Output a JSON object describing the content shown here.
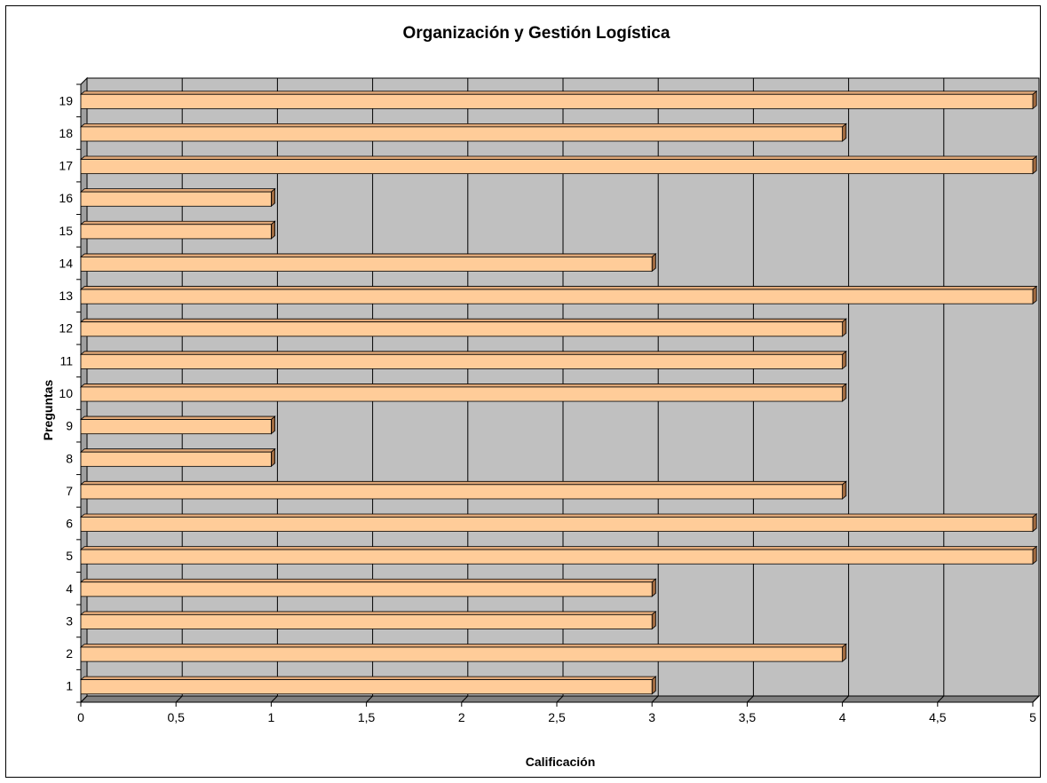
{
  "chart_data": {
    "type": "bar",
    "orientation": "horizontal",
    "title": "Organización y Gestión Logística",
    "xlabel": "Calificación",
    "ylabel": "Preguntas",
    "xlim": [
      0,
      5
    ],
    "x_ticks": [
      "0",
      "0,5",
      "1",
      "1,5",
      "2",
      "2,5",
      "3",
      "3,5",
      "4",
      "4,5",
      "5"
    ],
    "categories": [
      "1",
      "2",
      "3",
      "4",
      "5",
      "6",
      "7",
      "8",
      "9",
      "10",
      "11",
      "12",
      "13",
      "14",
      "15",
      "16",
      "17",
      "18",
      "19"
    ],
    "values": [
      3,
      4,
      3,
      3,
      5,
      5,
      4,
      1,
      1,
      4,
      4,
      4,
      5,
      3,
      1,
      1,
      5,
      4,
      5
    ],
    "grid": true,
    "legend": "none",
    "colors": {
      "bar_front": "#FFCC99",
      "bar_top": "#E0A878",
      "bar_side": "#A06A40",
      "plot_back": "#C0C0C0",
      "plot_floor": "#808080",
      "plot_wall": "#A0A0A0"
    }
  }
}
